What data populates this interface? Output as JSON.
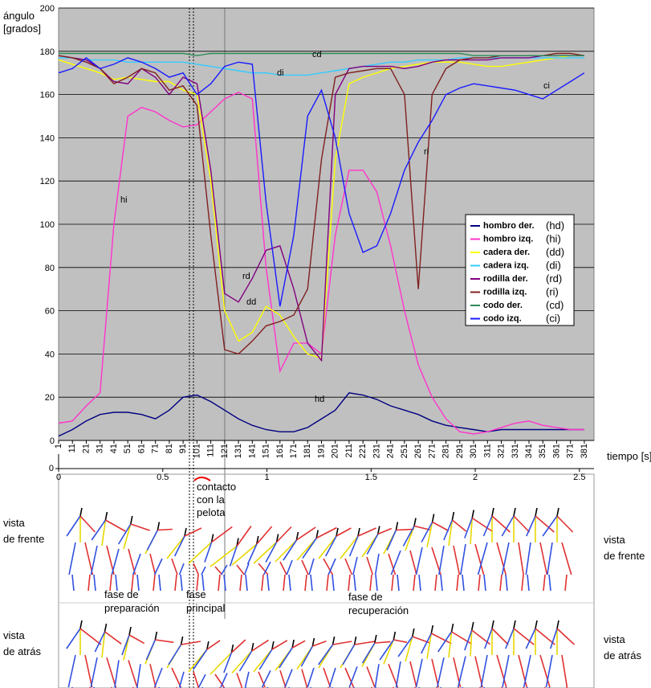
{
  "chart_data": {
    "type": "line",
    "ylabel": [
      "ángulo",
      "[grados]"
    ],
    "ylim": [
      0,
      200
    ],
    "yticks": [
      0,
      20,
      40,
      60,
      80,
      100,
      120,
      140,
      160,
      180,
      200
    ],
    "grid": true,
    "xlim": [
      1,
      388
    ],
    "xticks": [
      1,
      11,
      21,
      31,
      41,
      51,
      61,
      71,
      81,
      91,
      101,
      111,
      121,
      131,
      141,
      151,
      161,
      171,
      181,
      191,
      201,
      211,
      221,
      231,
      241,
      251,
      261,
      271,
      281,
      291,
      301,
      311,
      321,
      331,
      341,
      351,
      361,
      371,
      381
    ],
    "x": [
      1,
      11,
      21,
      31,
      41,
      51,
      61,
      71,
      81,
      91,
      101,
      111,
      121,
      131,
      141,
      151,
      161,
      171,
      181,
      191,
      201,
      211,
      221,
      231,
      241,
      251,
      261,
      271,
      281,
      291,
      301,
      311,
      321,
      331,
      341,
      351,
      361,
      371,
      381
    ],
    "legend": "right",
    "series": [
      {
        "name": "hombro der.",
        "abbr": "(hd)",
        "annotation": "hd",
        "color": "#000080",
        "values": [
          2,
          5,
          9,
          12,
          13,
          13,
          12,
          10,
          14,
          20,
          21,
          18,
          14,
          10,
          7,
          5,
          4,
          4,
          6,
          10,
          14,
          22,
          21,
          19,
          16,
          14,
          12,
          9,
          7,
          6,
          5,
          4,
          5,
          5,
          5,
          5,
          5,
          5,
          5
        ]
      },
      {
        "name": "hombro izq.",
        "abbr": "(hi)",
        "annotation": "hi",
        "color": "#ff33cc",
        "values": [
          8,
          9,
          16,
          22,
          100,
          150,
          154,
          152,
          148,
          145,
          146,
          152,
          158,
          161,
          158,
          80,
          32,
          45,
          45,
          40,
          95,
          125,
          125,
          115,
          90,
          60,
          35,
          20,
          10,
          4,
          3,
          4,
          6,
          8,
          9,
          7,
          6,
          5,
          5
        ]
      },
      {
        "name": "cadera der.",
        "abbr": "(dd)",
        "annotation": "dd",
        "color": "#ffff00",
        "values": [
          176,
          174,
          172,
          170,
          167,
          168,
          167,
          166,
          166,
          162,
          160,
          120,
          60,
          46,
          50,
          62,
          58,
          48,
          40,
          38,
          130,
          165,
          168,
          170,
          172,
          173,
          174,
          175,
          175,
          175,
          174,
          173,
          173,
          174,
          175,
          176,
          177,
          178,
          178
        ]
      },
      {
        "name": "cadera izq.",
        "abbr": "(di)",
        "annotation": "di",
        "color": "#33ccff",
        "values": [
          177,
          177,
          176,
          176,
          176,
          175,
          175,
          175,
          175,
          175,
          174,
          173,
          172,
          171,
          170,
          170,
          169,
          169,
          169,
          170,
          171,
          172,
          173,
          174,
          175,
          175,
          176,
          176,
          176,
          177,
          177,
          177,
          177,
          177,
          177,
          177,
          177,
          177,
          177
        ]
      },
      {
        "name": "rodilla der.",
        "abbr": "(rd)",
        "annotation": "rd",
        "color": "#800080",
        "values": [
          178,
          177,
          176,
          172,
          166,
          165,
          172,
          168,
          160,
          168,
          165,
          125,
          68,
          64,
          75,
          88,
          90,
          70,
          45,
          37,
          160,
          172,
          173,
          173,
          173,
          172,
          173,
          175,
          176,
          176,
          176,
          176,
          177,
          177,
          177,
          178,
          178,
          178,
          178
        ]
      },
      {
        "name": "rodilla izq.",
        "abbr": "(ri)",
        "annotation": "ri",
        "color": "#802020",
        "values": [
          178,
          177,
          175,
          172,
          165,
          168,
          172,
          170,
          162,
          164,
          155,
          95,
          42,
          40,
          46,
          53,
          55,
          58,
          70,
          130,
          168,
          170,
          171,
          172,
          172,
          160,
          70,
          160,
          172,
          176,
          177,
          177,
          178,
          178,
          178,
          178,
          179,
          179,
          178
        ]
      },
      {
        "name": "codo der.",
        "abbr": "(cd)",
        "annotation": "cd",
        "color": "#2e8b57",
        "values": [
          179,
          179,
          179,
          179,
          179,
          179,
          179,
          179,
          179,
          179,
          178,
          179,
          179,
          179,
          179,
          179,
          179,
          179,
          179,
          179,
          179,
          179,
          179,
          179,
          179,
          179,
          179,
          179,
          179,
          179,
          178,
          178,
          178,
          178,
          178,
          178,
          178,
          178,
          178
        ]
      },
      {
        "name": "codo izq.",
        "abbr": "(ci)",
        "annotation": "ci",
        "color": "#1a1aff",
        "values": [
          170,
          172,
          177,
          172,
          174,
          177,
          175,
          172,
          168,
          170,
          160,
          165,
          173,
          175,
          174,
          110,
          62,
          95,
          150,
          162,
          140,
          105,
          87,
          90,
          105,
          125,
          138,
          148,
          160,
          163,
          165,
          164,
          163,
          162,
          160,
          158,
          162,
          166,
          170
        ]
      }
    ],
    "time_axis": {
      "xlim": [
        0,
        2.57
      ],
      "xticks": [
        0,
        0.5,
        1,
        1.5,
        2,
        2.5
      ],
      "yticks": [
        0
      ],
      "xlabel": "tiempo [s]"
    }
  },
  "panel": {
    "contact": [
      "contacto",
      "con la",
      "pelota"
    ],
    "front_left": [
      "vista",
      "de frente"
    ],
    "front_right": [
      "vista",
      "de frente"
    ],
    "back_left": [
      "vista",
      "de atrás"
    ],
    "back_right": [
      "vista",
      "de atrás"
    ],
    "phase_prep": [
      "fase  de",
      "preparación"
    ],
    "phase_main": [
      "fase",
      "principal"
    ],
    "phase_rec": [
      "fase de",
      "recuperación"
    ]
  }
}
